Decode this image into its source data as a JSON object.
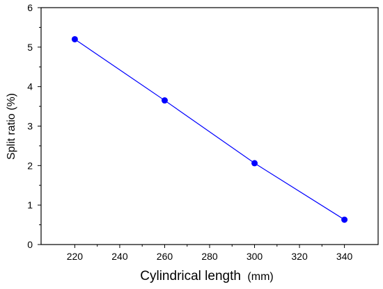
{
  "chart_data": {
    "type": "line",
    "xlabel": "Cylindrical length",
    "xlabel_unit": "(mm)",
    "ylabel": "Split ratio (%)",
    "xlim": [
      205,
      355
    ],
    "ylim": [
      0,
      6
    ],
    "x_ticks": [
      220,
      240,
      260,
      280,
      300,
      320,
      340
    ],
    "y_ticks": [
      0,
      1,
      2,
      3,
      4,
      5,
      6
    ],
    "x_tick_labels": [
      "220",
      "240",
      "260",
      "280",
      "300",
      "320",
      "340"
    ],
    "y_tick_labels": [
      "0",
      "1",
      "2",
      "3",
      "4",
      "5",
      "6"
    ],
    "series": [
      {
        "x": [
          220,
          260,
          300,
          340
        ],
        "y": [
          5.2,
          3.65,
          2.06,
          0.63
        ],
        "color": "#0000ff",
        "marker": "circle"
      }
    ],
    "grid": false,
    "legend": "none"
  }
}
